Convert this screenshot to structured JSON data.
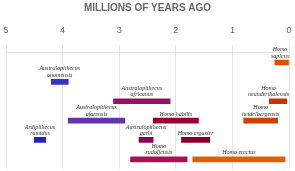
{
  "chart_data": {
    "type": "bar",
    "orientation": "horizontal",
    "title": "MILLIONS OF YEARS AGO",
    "categories": [
      null,
      null,
      null,
      null,
      null,
      null
    ],
    "series": [
      {
        "name": "Homo\nsapiens",
        "color": "#e05000",
        "values": [
          [
            0.0,
            0.25
          ],
          null,
          null,
          null,
          null,
          null
        ]
      },
      {
        "name": "Australopithecus\nanamensis",
        "color": "#3333cc",
        "values": [
          null,
          [
            3.9,
            4.2
          ],
          null,
          null,
          null,
          null
        ]
      },
      {
        "name": "Homo\nneanderthalensis",
        "color": "#cc3300",
        "values": [
          null,
          null,
          [
            0.04,
            0.35
          ],
          null,
          null,
          null
        ]
      },
      {
        "name": "Australopithecus\nafricanus",
        "color": "#991166",
        "values": [
          null,
          null,
          [
            2.1,
            3.1
          ],
          null,
          null,
          null
        ]
      },
      {
        "name": "Australopithecus\nafarensis",
        "color": "#6633aa",
        "values": [
          null,
          null,
          null,
          [
            2.9,
            3.9
          ],
          null,
          null
        ]
      },
      {
        "name": "Homo\nheidelbergensis",
        "color": "#cc4400",
        "values": [
          null,
          null,
          null,
          [
            0.2,
            0.8
          ],
          null,
          null
        ]
      },
      {
        "name": "Homo habilis",
        "color": "#990033",
        "values": [
          null,
          null,
          null,
          [
            1.6,
            2.4
          ],
          null,
          null
        ]
      },
      {
        "name": "Ardipithecus\nramidus",
        "color": "#2222bb",
        "values": [
          null,
          null,
          null,
          null,
          [
            4.3,
            4.5
          ],
          null
        ]
      },
      {
        "name": "Australopithecus\ngarhi",
        "color": "#880055",
        "values": [
          null,
          null,
          null,
          null,
          [
            2.4,
            2.65
          ],
          null
        ]
      },
      {
        "name": "Homo ergaster",
        "color": "#880022",
        "values": [
          null,
          null,
          null,
          null,
          [
            1.4,
            1.9
          ],
          null
        ]
      },
      {
        "name": "Homo\nrudolfensis",
        "color": "#aa1155",
        "values": [
          null,
          null,
          null,
          null,
          null,
          [
            1.8,
            2.8
          ]
        ]
      },
      {
        "name": "Homo erectus",
        "color": "#e06000",
        "values": [
          null,
          null,
          null,
          null,
          null,
          [
            0.07,
            1.7
          ]
        ]
      }
    ],
    "xlim": [
      5,
      0
    ],
    "xticks": [
      0,
      1,
      2,
      3,
      4,
      5
    ],
    "grid": true,
    "tick_labels": "x"
  }
}
